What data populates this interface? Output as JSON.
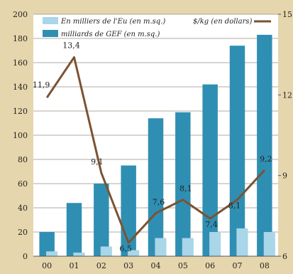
{
  "chart_data": {
    "type": "bar",
    "categories": [
      "00",
      "01",
      "02",
      "03",
      "04",
      "05",
      "06",
      "07",
      "08"
    ],
    "series": [
      {
        "name": "En milliers de l'Eu (en m.sq.)",
        "values": [
          4,
          3,
          8,
          5,
          15,
          15,
          20,
          23,
          20
        ],
        "color": "#a9d6e8",
        "axis": "left"
      },
      {
        "name": "milliards de GEF (en m.sq.)",
        "values": [
          20,
          44,
          60,
          75,
          114,
          119,
          142,
          174,
          183
        ],
        "color": "#2f8fb3",
        "axis": "left"
      },
      {
        "name": "$/kg (en dollars)",
        "type": "line",
        "values": [
          11.9,
          13.4,
          9.1,
          6.5,
          7.6,
          8.1,
          7.4,
          8.1,
          9.2
        ],
        "labels": [
          "11,9",
          "13,4",
          "9,1",
          "6,5",
          "7,6",
          "8,1",
          "7,4",
          "8,1",
          "9,2"
        ],
        "color": "#7b5333",
        "axis": "right"
      }
    ],
    "left_ticks": [
      "0",
      "20",
      "40",
      "60",
      "80",
      "100",
      "120",
      "140",
      "160",
      "180",
      "200"
    ],
    "right_ticks": [
      "6",
      "9",
      "12",
      "15"
    ],
    "ylim_left": [
      0,
      200
    ],
    "ylim_right": [
      6,
      15
    ],
    "grid": true,
    "legend_position": "top"
  }
}
